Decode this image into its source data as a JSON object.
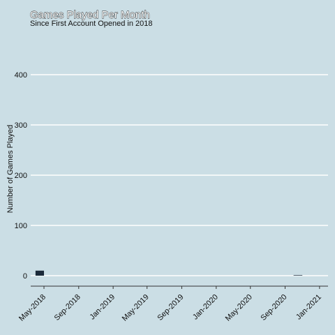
{
  "colors": {
    "background": "#cbdee5",
    "gridline": "#ffffff",
    "bar": "#1b2a3a",
    "axis": "#333333"
  },
  "chart_data": {
    "type": "bar",
    "title": "Games Played Per Month",
    "subtitle": "Since First Account Opened in 2018",
    "ylabel": "Number of Games Played",
    "xlabel": "",
    "grid": true,
    "ylim": [
      0,
      400
    ],
    "yticks": [
      0,
      100,
      200,
      300,
      400
    ],
    "xrange": [
      "2018-03-15",
      "2021-01-31"
    ],
    "xticks": [
      {
        "date": "2018-05-01",
        "label": "May-2018"
      },
      {
        "date": "2018-09-01",
        "label": "Sep-2018"
      },
      {
        "date": "2019-01-01",
        "label": "Jan-2019"
      },
      {
        "date": "2019-05-01",
        "label": "May-2019"
      },
      {
        "date": "2019-09-01",
        "label": "Sep-2019"
      },
      {
        "date": "2020-01-01",
        "label": "Jan-2020"
      },
      {
        "date": "2020-05-01",
        "label": "May-2020"
      },
      {
        "date": "2020-09-01",
        "label": "Sep-2020"
      },
      {
        "date": "2021-01-01",
        "label": "Jan-2021"
      }
    ],
    "bars": [
      {
        "month": "2018-04-01",
        "value": 10
      },
      {
        "month": "2020-10-01",
        "value": 1
      }
    ]
  }
}
